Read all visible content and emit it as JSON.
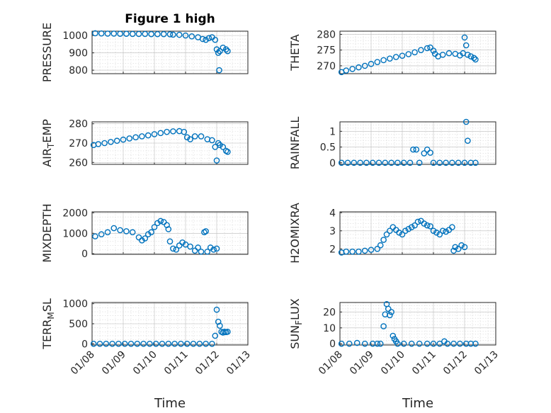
{
  "figure": {
    "title": "Figure 1 high",
    "marker_color": "#0072BD"
  },
  "chart_data": [
    {
      "type": "scatter",
      "title": "Figure 1 high",
      "ylabel": "PRESSURE",
      "xlabel": "",
      "xlim": [
        0,
        5
      ],
      "ylim": [
        780,
        1025
      ],
      "yticks": [
        800,
        900,
        1000
      ],
      "xticks": [
        0,
        1,
        2,
        3,
        4,
        5
      ],
      "xticklabels": [
        "01/08",
        "01/09",
        "01/10",
        "01/11",
        "01/12",
        "01/13"
      ],
      "show_xticklabels": false,
      "points": [
        [
          0.1,
          1013
        ],
        [
          0.3,
          1012
        ],
        [
          0.5,
          1011
        ],
        [
          0.7,
          1011
        ],
        [
          0.9,
          1010
        ],
        [
          1.1,
          1010
        ],
        [
          1.3,
          1009
        ],
        [
          1.5,
          1009
        ],
        [
          1.7,
          1009
        ],
        [
          1.9,
          1008
        ],
        [
          2.1,
          1008
        ],
        [
          2.3,
          1008
        ],
        [
          2.5,
          1007
        ],
        [
          2.6,
          1005
        ],
        [
          2.8,
          1004
        ],
        [
          3.0,
          1000
        ],
        [
          3.2,
          995
        ],
        [
          3.4,
          990
        ],
        [
          3.55,
          980
        ],
        [
          3.65,
          975
        ],
        [
          3.75,
          985
        ],
        [
          3.85,
          990
        ],
        [
          3.95,
          975
        ],
        [
          4.0,
          920
        ],
        [
          4.05,
          900
        ],
        [
          4.08,
          800
        ],
        [
          4.1,
          910
        ],
        [
          4.2,
          930
        ],
        [
          4.3,
          920
        ],
        [
          4.35,
          910
        ]
      ]
    },
    {
      "type": "scatter",
      "ylabel": "THETA",
      "xlabel": "",
      "xlim": [
        0,
        5
      ],
      "ylim": [
        267.5,
        281
      ],
      "yticks": [
        270,
        275,
        280
      ],
      "xticks": [
        0,
        1,
        2,
        3,
        4,
        5
      ],
      "xticklabels": [
        "01/08",
        "01/09",
        "01/10",
        "01/11",
        "01/12",
        "01/13"
      ],
      "show_xticklabels": false,
      "points": [
        [
          0.05,
          268
        ],
        [
          0.2,
          268.5
        ],
        [
          0.4,
          269
        ],
        [
          0.6,
          269.5
        ],
        [
          0.8,
          270
        ],
        [
          1.0,
          270.6
        ],
        [
          1.2,
          271.2
        ],
        [
          1.4,
          271.8
        ],
        [
          1.6,
          272.3
        ],
        [
          1.8,
          272.8
        ],
        [
          2.0,
          273.2
        ],
        [
          2.2,
          273.7
        ],
        [
          2.4,
          274.3
        ],
        [
          2.6,
          275
        ],
        [
          2.8,
          275.6
        ],
        [
          2.9,
          275.8
        ],
        [
          3.0,
          274.8
        ],
        [
          3.05,
          273.8
        ],
        [
          3.15,
          273
        ],
        [
          3.3,
          273.5
        ],
        [
          3.5,
          274
        ],
        [
          3.7,
          273.8
        ],
        [
          3.85,
          273.3
        ],
        [
          3.95,
          274
        ],
        [
          4.0,
          279
        ],
        [
          4.05,
          276.5
        ],
        [
          4.1,
          273.5
        ],
        [
          4.2,
          273
        ],
        [
          4.3,
          272.5
        ],
        [
          4.35,
          272
        ]
      ]
    },
    {
      "type": "scatter",
      "ylabel": "AIR_TEMP",
      "xlabel": "",
      "xlim": [
        0,
        5
      ],
      "ylim": [
        259,
        281
      ],
      "yticks": [
        260,
        270,
        280
      ],
      "xticks": [
        0,
        1,
        2,
        3,
        4,
        5
      ],
      "xticklabels": [
        "01/08",
        "01/09",
        "01/10",
        "01/11",
        "01/12",
        "01/13"
      ],
      "show_xticklabels": false,
      "points": [
        [
          0.05,
          269
        ],
        [
          0.2,
          269.5
        ],
        [
          0.4,
          270
        ],
        [
          0.6,
          270.6
        ],
        [
          0.8,
          271.2
        ],
        [
          1.0,
          271.8
        ],
        [
          1.2,
          272.4
        ],
        [
          1.4,
          273
        ],
        [
          1.6,
          273.5
        ],
        [
          1.8,
          274
        ],
        [
          2.0,
          274.6
        ],
        [
          2.2,
          275.2
        ],
        [
          2.4,
          275.8
        ],
        [
          2.6,
          276.1
        ],
        [
          2.8,
          276.2
        ],
        [
          2.95,
          275.8
        ],
        [
          3.05,
          273
        ],
        [
          3.15,
          272
        ],
        [
          3.3,
          273.5
        ],
        [
          3.5,
          273.5
        ],
        [
          3.7,
          272
        ],
        [
          3.85,
          271.5
        ],
        [
          3.95,
          268
        ],
        [
          4.0,
          261
        ],
        [
          4.05,
          270
        ],
        [
          4.1,
          269
        ],
        [
          4.2,
          268
        ],
        [
          4.3,
          266
        ],
        [
          4.35,
          265.5
        ]
      ]
    },
    {
      "type": "scatter",
      "ylabel": "RAINFALL",
      "xlabel": "",
      "xlim": [
        0,
        5
      ],
      "ylim": [
        -0.05,
        1.3
      ],
      "yticks": [
        0,
        0.5,
        1
      ],
      "xticks": [
        0,
        1,
        2,
        3,
        4,
        5
      ],
      "xticklabels": [
        "01/08",
        "01/09",
        "01/10",
        "01/11",
        "01/12",
        "01/13"
      ],
      "show_xticklabels": false,
      "points": [
        [
          0.05,
          0
        ],
        [
          0.25,
          0
        ],
        [
          0.45,
          0
        ],
        [
          0.65,
          0
        ],
        [
          0.85,
          0
        ],
        [
          1.05,
          0
        ],
        [
          1.25,
          0
        ],
        [
          1.45,
          0
        ],
        [
          1.65,
          0
        ],
        [
          1.85,
          0
        ],
        [
          2.05,
          0
        ],
        [
          2.25,
          0
        ],
        [
          2.35,
          0.42
        ],
        [
          2.45,
          0.42
        ],
        [
          2.55,
          0
        ],
        [
          2.7,
          0.3
        ],
        [
          2.8,
          0.42
        ],
        [
          2.9,
          0.32
        ],
        [
          3.0,
          0
        ],
        [
          3.2,
          0
        ],
        [
          3.4,
          0
        ],
        [
          3.6,
          0
        ],
        [
          3.8,
          0
        ],
        [
          4.0,
          0
        ],
        [
          4.05,
          1.3
        ],
        [
          4.1,
          0.7
        ],
        [
          4.2,
          0
        ],
        [
          4.35,
          0
        ]
      ]
    },
    {
      "type": "scatter",
      "ylabel": "MIXDEPTH",
      "xlabel": "",
      "xlim": [
        0,
        5
      ],
      "ylim": [
        -30,
        2050
      ],
      "yticks": [
        0,
        1000,
        2000
      ],
      "xticks": [
        0,
        1,
        2,
        3,
        4,
        5
      ],
      "xticklabels": [
        "01/08",
        "01/09",
        "01/10",
        "01/11",
        "01/12",
        "01/13"
      ],
      "show_xticklabels": false,
      "points": [
        [
          0.1,
          850
        ],
        [
          0.3,
          950
        ],
        [
          0.5,
          1050
        ],
        [
          0.7,
          1250
        ],
        [
          0.9,
          1150
        ],
        [
          1.1,
          1100
        ],
        [
          1.3,
          1050
        ],
        [
          1.5,
          800
        ],
        [
          1.6,
          650
        ],
        [
          1.7,
          750
        ],
        [
          1.8,
          950
        ],
        [
          1.9,
          1050
        ],
        [
          2.0,
          1300
        ],
        [
          2.1,
          1500
        ],
        [
          2.2,
          1600
        ],
        [
          2.3,
          1550
        ],
        [
          2.4,
          1400
        ],
        [
          2.45,
          1200
        ],
        [
          2.5,
          600
        ],
        [
          2.6,
          250
        ],
        [
          2.7,
          200
        ],
        [
          2.8,
          400
        ],
        [
          2.9,
          550
        ],
        [
          3.0,
          450
        ],
        [
          3.15,
          350
        ],
        [
          3.3,
          150
        ],
        [
          3.4,
          300
        ],
        [
          3.5,
          100
        ],
        [
          3.6,
          1050
        ],
        [
          3.65,
          1100
        ],
        [
          3.7,
          100
        ],
        [
          3.8,
          300
        ],
        [
          3.9,
          200
        ],
        [
          4.0,
          250
        ]
      ]
    },
    {
      "type": "scatter",
      "ylabel": "H2OMIXRA",
      "xlabel": "",
      "xlim": [
        0,
        5
      ],
      "ylim": [
        1.7,
        4.05
      ],
      "yticks": [
        2,
        3,
        4
      ],
      "xticks": [
        0,
        1,
        2,
        3,
        4,
        5
      ],
      "xticklabels": [
        "01/08",
        "01/09",
        "01/10",
        "01/11",
        "01/12",
        "01/13"
      ],
      "show_xticklabels": false,
      "points": [
        [
          0.05,
          1.8
        ],
        [
          0.2,
          1.85
        ],
        [
          0.4,
          1.85
        ],
        [
          0.6,
          1.85
        ],
        [
          0.8,
          1.9
        ],
        [
          1.0,
          1.95
        ],
        [
          1.2,
          2.0
        ],
        [
          1.3,
          2.2
        ],
        [
          1.4,
          2.5
        ],
        [
          1.5,
          2.8
        ],
        [
          1.6,
          3.0
        ],
        [
          1.7,
          3.2
        ],
        [
          1.8,
          3.05
        ],
        [
          1.9,
          2.9
        ],
        [
          2.0,
          2.8
        ],
        [
          2.1,
          3.0
        ],
        [
          2.2,
          3.1
        ],
        [
          2.3,
          3.2
        ],
        [
          2.4,
          3.3
        ],
        [
          2.5,
          3.5
        ],
        [
          2.6,
          3.55
        ],
        [
          2.7,
          3.4
        ],
        [
          2.8,
          3.3
        ],
        [
          2.9,
          3.25
        ],
        [
          3.0,
          3.0
        ],
        [
          3.1,
          2.9
        ],
        [
          3.2,
          2.8
        ],
        [
          3.3,
          3.0
        ],
        [
          3.4,
          2.95
        ],
        [
          3.5,
          3.05
        ],
        [
          3.6,
          3.2
        ],
        [
          3.65,
          1.9
        ],
        [
          3.7,
          2.1
        ],
        [
          3.8,
          2.0
        ],
        [
          3.9,
          2.2
        ],
        [
          4.0,
          2.1
        ]
      ]
    },
    {
      "type": "scatter",
      "ylabel": "TERR_MSL",
      "xlabel": "Time",
      "xlim": [
        0,
        5
      ],
      "ylim": [
        -30,
        1030
      ],
      "yticks": [
        0,
        500,
        1000
      ],
      "xticks": [
        0,
        1,
        2,
        3,
        4,
        5
      ],
      "xticklabels": [
        "01/08",
        "01/09",
        "01/10",
        "01/11",
        "01/12",
        "01/13"
      ],
      "show_xticklabels": true,
      "points": [
        [
          0.05,
          0
        ],
        [
          0.25,
          0
        ],
        [
          0.45,
          0
        ],
        [
          0.65,
          0
        ],
        [
          0.85,
          0
        ],
        [
          1.05,
          0
        ],
        [
          1.25,
          0
        ],
        [
          1.45,
          0
        ],
        [
          1.65,
          0
        ],
        [
          1.85,
          0
        ],
        [
          2.05,
          0
        ],
        [
          2.25,
          0
        ],
        [
          2.45,
          0
        ],
        [
          2.65,
          0
        ],
        [
          2.85,
          0
        ],
        [
          3.05,
          0
        ],
        [
          3.25,
          0
        ],
        [
          3.45,
          0
        ],
        [
          3.65,
          0
        ],
        [
          3.85,
          0
        ],
        [
          3.95,
          200
        ],
        [
          4.0,
          850
        ],
        [
          4.05,
          550
        ],
        [
          4.1,
          450
        ],
        [
          4.15,
          300
        ],
        [
          4.2,
          280
        ],
        [
          4.25,
          300
        ],
        [
          4.3,
          290
        ],
        [
          4.35,
          300
        ]
      ]
    },
    {
      "type": "scatter",
      "ylabel": "SUN_FLUX",
      "xlabel": "Time",
      "xlim": [
        0,
        5
      ],
      "ylim": [
        -0.8,
        26
      ],
      "yticks": [
        0,
        10,
        20
      ],
      "xticks": [
        0,
        1,
        2,
        3,
        4,
        5
      ],
      "xticklabels": [
        "01/08",
        "01/09",
        "01/10",
        "01/11",
        "01/12",
        "01/13"
      ],
      "show_xticklabels": true,
      "points": [
        [
          0.05,
          0
        ],
        [
          0.3,
          0
        ],
        [
          0.55,
          0.5
        ],
        [
          0.8,
          0
        ],
        [
          1.05,
          0
        ],
        [
          1.2,
          0
        ],
        [
          1.3,
          0
        ],
        [
          1.4,
          11
        ],
        [
          1.45,
          18.5
        ],
        [
          1.5,
          25
        ],
        [
          1.55,
          22
        ],
        [
          1.6,
          18
        ],
        [
          1.65,
          20
        ],
        [
          1.7,
          5
        ],
        [
          1.75,
          3
        ],
        [
          1.8,
          1.5
        ],
        [
          1.85,
          0
        ],
        [
          2.05,
          0
        ],
        [
          2.3,
          0
        ],
        [
          2.55,
          0
        ],
        [
          2.8,
          0
        ],
        [
          3.0,
          0
        ],
        [
          3.2,
          0
        ],
        [
          3.35,
          1.5
        ],
        [
          3.45,
          0
        ],
        [
          3.65,
          0
        ],
        [
          3.85,
          0
        ],
        [
          4.05,
          0
        ],
        [
          4.2,
          0
        ],
        [
          4.35,
          0
        ]
      ]
    }
  ]
}
